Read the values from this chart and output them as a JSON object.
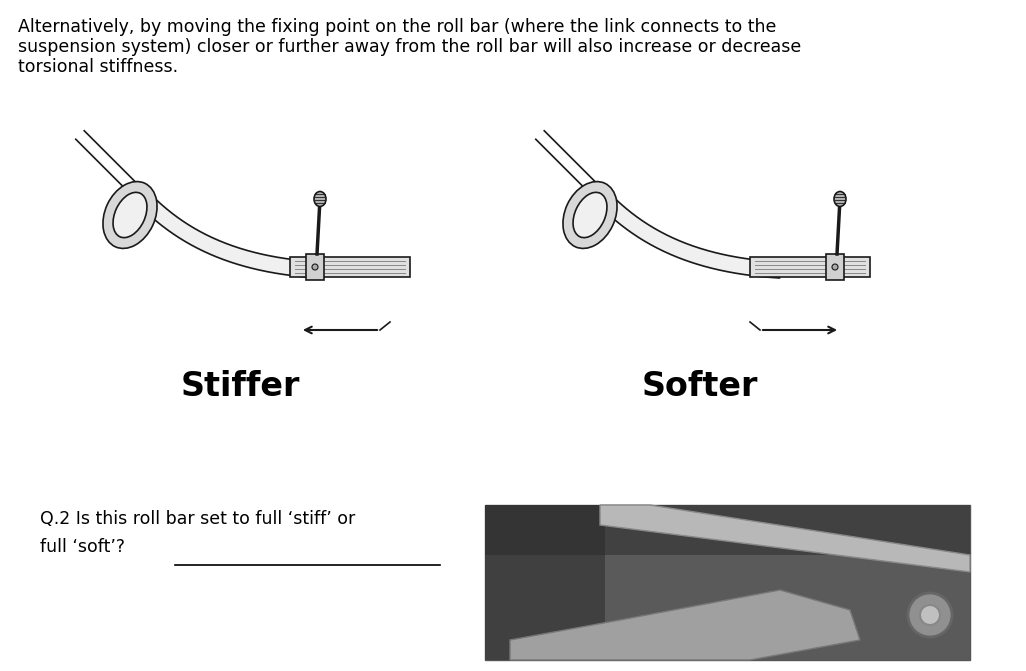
{
  "background_color": "#ffffff",
  "paragraph_text_line1": "Alternatively, by moving the fixing point on the roll bar (where the link connects to the",
  "paragraph_text_line2": "suspension system) closer or further away from the roll bar will also increase or decrease",
  "paragraph_text_line3": "torsional stiffness.",
  "label_stiffer": "Stiffer",
  "label_softer": "Softer",
  "question_text_line1": "Q.2 Is this roll bar set to full ‘stiff’ or",
  "question_text_line2": "full ‘soft’?",
  "paragraph_fontsize": 12.5,
  "label_fontsize": 24,
  "question_fontsize": 12.5,
  "fig_width": 10.26,
  "fig_height": 6.71,
  "text_color": "#000000",
  "diagram_line_color": "#1a1a1a",
  "diagram_fill_light": "#e8e8e8",
  "diagram_fill_mid": "#c0c0c0",
  "diagram_fill_dark": "#888888"
}
